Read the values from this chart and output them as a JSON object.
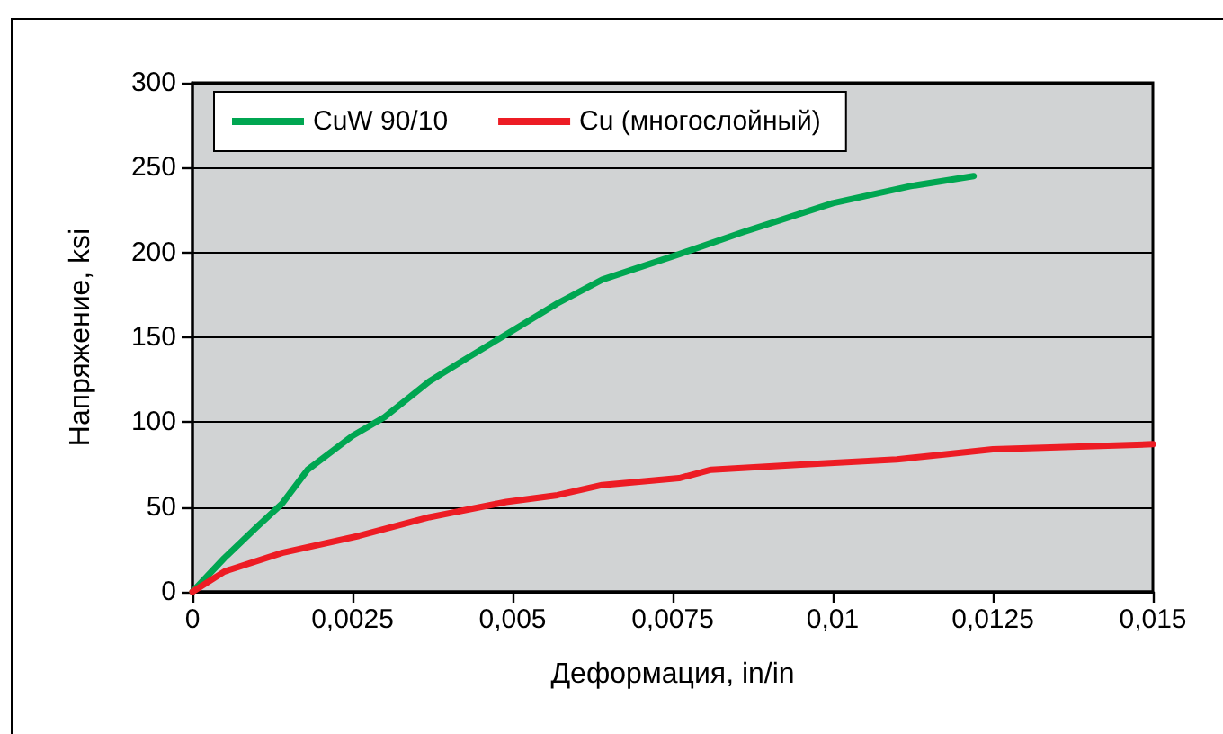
{
  "chart_data": {
    "type": "line",
    "xlabel": "Деформация, in/in",
    "ylabel": "Напряжение, ksi",
    "xlim": [
      0,
      0.015
    ],
    "xticks": [
      0,
      {
        "value": 0.0025,
        "label": "0,0025"
      },
      {
        "value": 0.005,
        "label": "0,005"
      },
      {
        "value": 0.0075,
        "label": "0,0075"
      },
      {
        "value": 0.01,
        "label": "0,01"
      },
      {
        "value": 0.0125,
        "label": "0,0125"
      },
      {
        "value": 0.015,
        "label": "0,015"
      }
    ],
    "ylim": [
      0,
      300
    ],
    "yticks": [
      0,
      50,
      100,
      150,
      200,
      250,
      300
    ],
    "grid": "y",
    "legend": "top left",
    "series": [
      {
        "name": "CuW 90/10",
        "color": "#00a651",
        "x": [
          0,
          0.0005,
          0.001,
          0.0014,
          0.0018,
          0.0025,
          0.003,
          0.0037,
          0.0043,
          0.005,
          0.0057,
          0.0064,
          0.0076,
          0.0086,
          0.01,
          0.0112,
          0.0122
        ],
        "values": [
          0,
          20,
          38,
          52,
          72,
          92,
          103,
          124,
          138,
          154,
          170,
          184,
          199,
          212,
          229,
          239,
          245
        ]
      },
      {
        "name": "Cu (многослойный)",
        "color": "#ed1c24",
        "x": [
          0,
          0.0005,
          0.0014,
          0.0026,
          0.0037,
          0.0049,
          0.0057,
          0.0064,
          0.0076,
          0.0081,
          0.0095,
          0.011,
          0.0125,
          0.015
        ],
        "values": [
          0,
          12,
          23,
          33,
          44,
          53,
          57,
          63,
          67,
          72,
          75,
          78,
          84,
          87
        ]
      }
    ]
  }
}
